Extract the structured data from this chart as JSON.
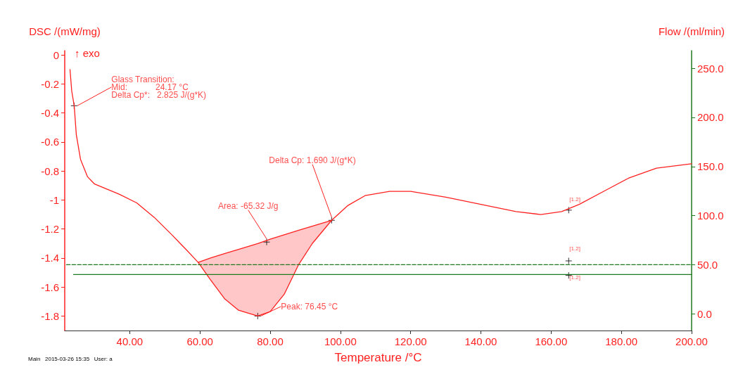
{
  "chart_data": {
    "type": "line",
    "xlabel": "Temperature /°C",
    "ylabel": "DSC /(mW/mg)",
    "y2label": "Flow /(ml/min)",
    "series": [
      {
        "color": "#ff2020",
        "line_style": "solid",
        "x": [
          23.0,
          23.5,
          24.2,
          24.8,
          26,
          28,
          30,
          33,
          37,
          42,
          47,
          52,
          56,
          59.5,
          63,
          67,
          71,
          76.45,
          80,
          84,
          88,
          92,
          97.5,
          102,
          107,
          114,
          120,
          130,
          140,
          150,
          157,
          163,
          168,
          175,
          182,
          190,
          200
        ],
        "values": [
          -0.1,
          -0.25,
          -0.35,
          -0.55,
          -0.72,
          -0.84,
          -0.89,
          -0.92,
          -0.96,
          -1.02,
          -1.12,
          -1.24,
          -1.34,
          -1.43,
          -1.55,
          -1.68,
          -1.76,
          -1.8,
          -1.77,
          -1.65,
          -1.45,
          -1.3,
          -1.14,
          -1.04,
          -0.97,
          -0.94,
          -0.94,
          -0.98,
          -1.03,
          -1.08,
          -1.1,
          -1.08,
          -1.03,
          -0.94,
          -0.85,
          -0.78,
          -0.75
        ]
      },
      {
        "color": "#ff2020",
        "line_style": "solid",
        "x": [
          59.5,
          63,
          67,
          71,
          76.45,
          80,
          84,
          88,
          92,
          97.5
        ],
        "values": [
          -1.43,
          -1.4,
          -1.37,
          -1.34,
          -1.3,
          -1.27,
          -1.24,
          -1.21,
          -1.18,
          -1.14
        ],
        "upper": [
          -1.43,
          -1.4,
          -1.37,
          -1.34,
          -1.3,
          -1.27,
          -1.24,
          -1.21,
          -1.18,
          -1.14
        ],
        "lower": [
          -1.43,
          -1.55,
          -1.68,
          -1.76,
          -1.8,
          -1.77,
          -1.65,
          -1.45,
          -1.3,
          -1.14
        ]
      },
      {
        "axis": "y2",
        "color": "#1f7a1f",
        "line_style": "dashed",
        "x": [
          22,
          200
        ],
        "values": [
          50,
          50
        ]
      },
      {
        "axis": "y2",
        "color": "#1f7a1f",
        "line_style": "solid",
        "x": [
          24,
          200
        ],
        "values": [
          40,
          40
        ]
      }
    ],
    "marker": "none",
    "xlim": [
      21.5,
      200
    ],
    "xticks": [
      {
        "value": 40,
        "label": "40.00"
      },
      {
        "value": 60,
        "label": "60.00"
      },
      {
        "value": 80,
        "label": "80.00"
      },
      {
        "value": 100,
        "label": "100.00"
      },
      {
        "value": 120,
        "label": "120.00"
      },
      {
        "value": 140,
        "label": "140.00"
      },
      {
        "value": 160,
        "label": "160.00"
      },
      {
        "value": 180,
        "label": "180.00"
      },
      {
        "value": 200,
        "label": "200.00"
      }
    ],
    "ylim": [
      -1.9,
      0.03
    ],
    "yticks": [
      0,
      -0.2,
      -0.4,
      -0.6,
      -0.8,
      -1,
      -1.2,
      -1.4,
      -1.6,
      -1.8
    ],
    "y2lim": [
      -17,
      268
    ],
    "y2ticks": [
      {
        "value": 0,
        "label": "0.0"
      },
      {
        "value": 50,
        "label": "50.0"
      },
      {
        "value": 100,
        "label": "100.0"
      },
      {
        "value": 150,
        "label": "150.0"
      },
      {
        "value": 200,
        "label": "200.0"
      },
      {
        "value": 250,
        "label": "250.0"
      }
    ],
    "grid": false,
    "annotations": [
      "↑ exo",
      {
        "text": "Glass Transition:\nMid:            24.17 °C\nDelta Cp*:   2.825 J/(g*K)",
        "x": 24.17,
        "y": -0.35
      },
      {
        "text": "Area: -65.32 J/g",
        "x": 79,
        "y": -1.29
      },
      {
        "text": "Delta Cp: 1.690 J/(g*K)",
        "x": 97.5,
        "y": -1.14
      },
      {
        "text": "Peak: 76.45 °C",
        "x": 76.45,
        "y": -1.8
      },
      {
        "text": "[1.2]",
        "x": 165,
        "y": -1.07
      },
      {
        "text": "[1.2]",
        "x": 165,
        "y": -1.42
      },
      {
        "text": "[1.2]",
        "x": 165,
        "y": -1.52
      },
      "Main   2015-03-26 15:35   User: a"
    ]
  }
}
